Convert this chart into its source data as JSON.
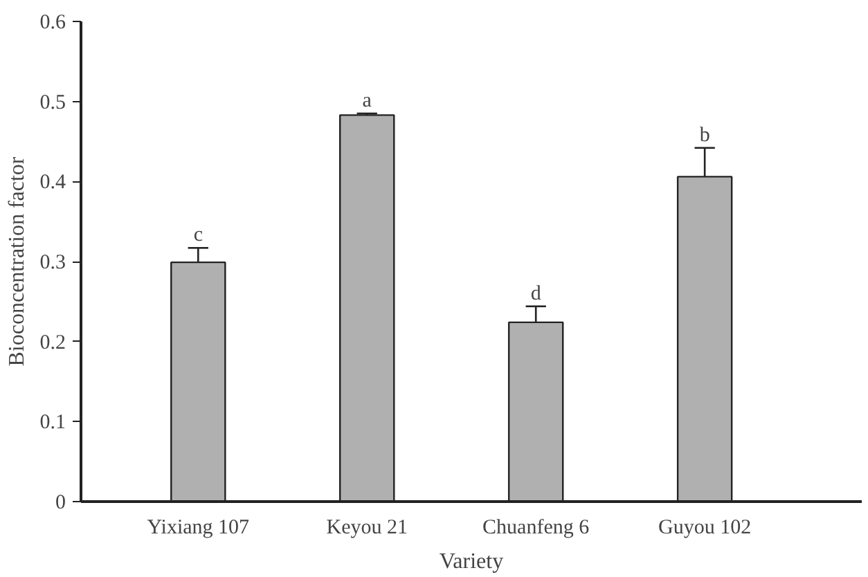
{
  "chart_data": {
    "type": "bar",
    "xlabel": "Variety",
    "ylabel": "Bioconcentration factor",
    "categories": [
      "Yixiang 107",
      "Keyou 21",
      "Chuanfeng 6",
      "Guyou 102"
    ],
    "values": [
      0.299,
      0.483,
      0.224,
      0.406
    ],
    "errors": [
      [
        0.299,
        0.317
      ],
      [
        0.483,
        0.485
      ],
      [
        0.224,
        0.244
      ],
      [
        0.406,
        0.442
      ]
    ],
    "color": "#b0b0b0",
    "ylim": [
      0,
      0.6
    ],
    "yticks": [
      0,
      0.1,
      0.2,
      0.3,
      0.4,
      0.5,
      0.6
    ],
    "grid": false,
    "annotations": [
      {
        "text": "c",
        "x": "Yixiang 107",
        "y": 0.317
      },
      {
        "text": "a",
        "x": "Keyou 21",
        "y": 0.485
      },
      {
        "text": "d",
        "x": "Chuanfeng 6",
        "y": 0.244
      },
      {
        "text": "b",
        "x": "Guyou 102",
        "y": 0.442
      }
    ]
  }
}
